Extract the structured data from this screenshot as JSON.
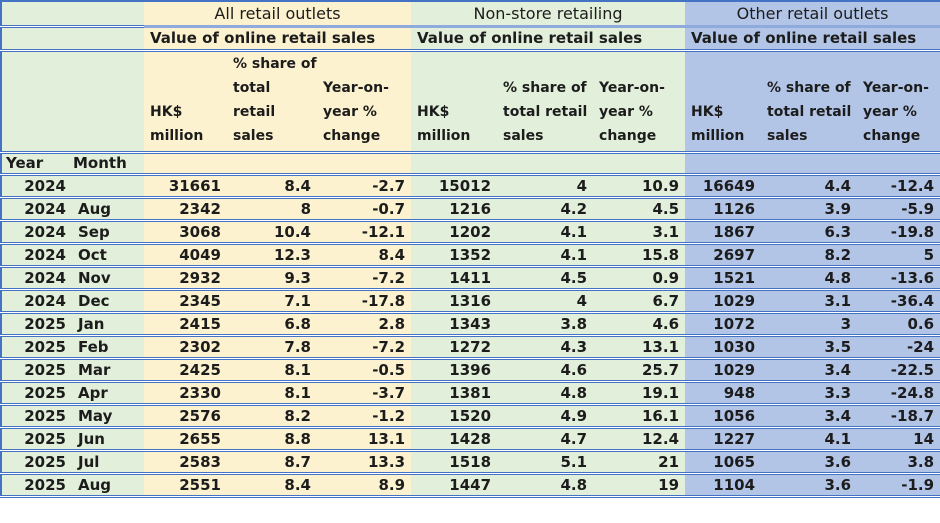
{
  "colors": {
    "group_all_bg": "#fcf2cf",
    "group_nonstore_bg": "#e2efda",
    "group_other_bg": "#b3c5e7",
    "row_header_bg": "#e2efda",
    "border_blue": "#4472c4",
    "group_underline_blue": "#8faadc"
  },
  "chart_data": {
    "type": "table",
    "title": "Value of online retail sales",
    "groups": [
      {
        "title": "All retail outlets",
        "subtitle": "Value of online retail sales"
      },
      {
        "title": "Non-store retailing",
        "subtitle": "Value of online retail sales"
      },
      {
        "title": "Other retail outlets",
        "subtitle": "Value of online retail sales"
      }
    ],
    "measure_headers": [
      "HK$\nmillion",
      "% share of\ntotal retail\nsales",
      "Year-on-\nyear %\nchange"
    ],
    "row_header_labels": {
      "year": "Year",
      "month": "Month"
    },
    "rows": [
      {
        "year": 2024,
        "month": "",
        "values": [
          31661,
          8.4,
          -2.7,
          15012,
          4,
          10.9,
          16649,
          4.4,
          -12.4
        ]
      },
      {
        "year": 2024,
        "month": "Aug",
        "values": [
          2342,
          8,
          -0.7,
          1216,
          4.2,
          4.5,
          1126,
          3.9,
          -5.9
        ]
      },
      {
        "year": 2024,
        "month": "Sep",
        "values": [
          3068,
          10.4,
          -12.1,
          1202,
          4.1,
          3.1,
          1867,
          6.3,
          -19.8
        ]
      },
      {
        "year": 2024,
        "month": "Oct",
        "values": [
          4049,
          12.3,
          8.4,
          1352,
          4.1,
          15.8,
          2697,
          8.2,
          5
        ]
      },
      {
        "year": 2024,
        "month": "Nov",
        "values": [
          2932,
          9.3,
          -7.2,
          1411,
          4.5,
          0.9,
          1521,
          4.8,
          -13.6
        ]
      },
      {
        "year": 2024,
        "month": "Dec",
        "values": [
          2345,
          7.1,
          -17.8,
          1316,
          4,
          6.7,
          1029,
          3.1,
          -36.4
        ]
      },
      {
        "year": 2025,
        "month": "Jan",
        "values": [
          2415,
          6.8,
          2.8,
          1343,
          3.8,
          4.6,
          1072,
          3,
          0.6
        ]
      },
      {
        "year": 2025,
        "month": "Feb",
        "values": [
          2302,
          7.8,
          -7.2,
          1272,
          4.3,
          13.1,
          1030,
          3.5,
          -24
        ]
      },
      {
        "year": 2025,
        "month": "Mar",
        "values": [
          2425,
          8.1,
          -0.5,
          1396,
          4.6,
          25.7,
          1029,
          3.4,
          -22.5
        ]
      },
      {
        "year": 2025,
        "month": "Apr",
        "values": [
          2330,
          8.1,
          -3.7,
          1381,
          4.8,
          19.1,
          948,
          3.3,
          -24.8
        ]
      },
      {
        "year": 2025,
        "month": "May",
        "values": [
          2576,
          8.2,
          -1.2,
          1520,
          4.9,
          16.1,
          1056,
          3.4,
          -18.7
        ]
      },
      {
        "year": 2025,
        "month": "Jun",
        "values": [
          2655,
          8.8,
          13.1,
          1428,
          4.7,
          12.4,
          1227,
          4.1,
          14
        ]
      },
      {
        "year": 2025,
        "month": "Jul",
        "values": [
          2583,
          8.7,
          13.3,
          1518,
          5.1,
          21,
          1065,
          3.6,
          3.8
        ]
      },
      {
        "year": 2025,
        "month": "Aug",
        "values": [
          2551,
          8.4,
          8.9,
          1447,
          4.8,
          19,
          1104,
          3.6,
          -1.9
        ]
      }
    ]
  }
}
